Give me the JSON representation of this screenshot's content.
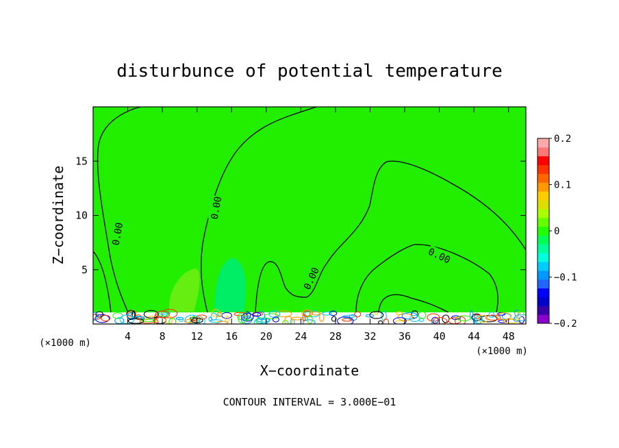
{
  "chart_data": {
    "type": "contour",
    "title": "disturbunce of potential temperature",
    "xlabel": "X−coordinate",
    "ylabel": "Z−coordinate",
    "x_unit_left": "(×1000 m)",
    "x_unit_right": "(×1000 m)",
    "footer": "CONTOUR INTERVAL = 3.000E−01",
    "xlim": [
      0,
      50
    ],
    "ylim": [
      0,
      20
    ],
    "x_ticks": [
      4,
      8,
      12,
      16,
      20,
      24,
      28,
      32,
      36,
      40,
      44,
      48
    ],
    "y_ticks": [
      5,
      10,
      15
    ],
    "contour_labels": [
      {
        "text": "0.00",
        "x": 2.8,
        "y": 8.3,
        "angle": -80
      },
      {
        "text": "0.00",
        "x": 14.2,
        "y": 10.7,
        "angle": -80
      },
      {
        "text": "0.00",
        "x": 25.2,
        "y": 4.2,
        "angle": -65
      },
      {
        "text": "0.00",
        "x": 40.0,
        "y": 6.3,
        "angle": 25
      }
    ],
    "colorbar": {
      "range": [
        -0.2,
        0.2
      ],
      "tick_labels": [
        "0.2",
        "0.1",
        "0",
        "−0.1",
        "−0.2"
      ],
      "tick_values": [
        0.2,
        0.1,
        0,
        -0.1,
        -0.2
      ],
      "colors": [
        "#8b00cc",
        "#3a00a8",
        "#0000cc",
        "#0000ff",
        "#2266ff",
        "#0099ff",
        "#00ccff",
        "#00ffdd",
        "#00ff99",
        "#00ff55",
        "#22ff00",
        "#66ff00",
        "#aaff00",
        "#dddd00",
        "#ffcc00",
        "#ff9900",
        "#ff6600",
        "#ff3300",
        "#ff0000",
        "#ff7777",
        "#ffaaaa"
      ]
    },
    "background_color": "#22ee00",
    "anomalies": [
      {
        "label": "positive",
        "color": "#66ee11",
        "x": 10.5,
        "y": 2.5
      },
      {
        "label": "negative",
        "color": "#00ee66",
        "x": 16.0,
        "y": 3.0
      }
    ]
  }
}
